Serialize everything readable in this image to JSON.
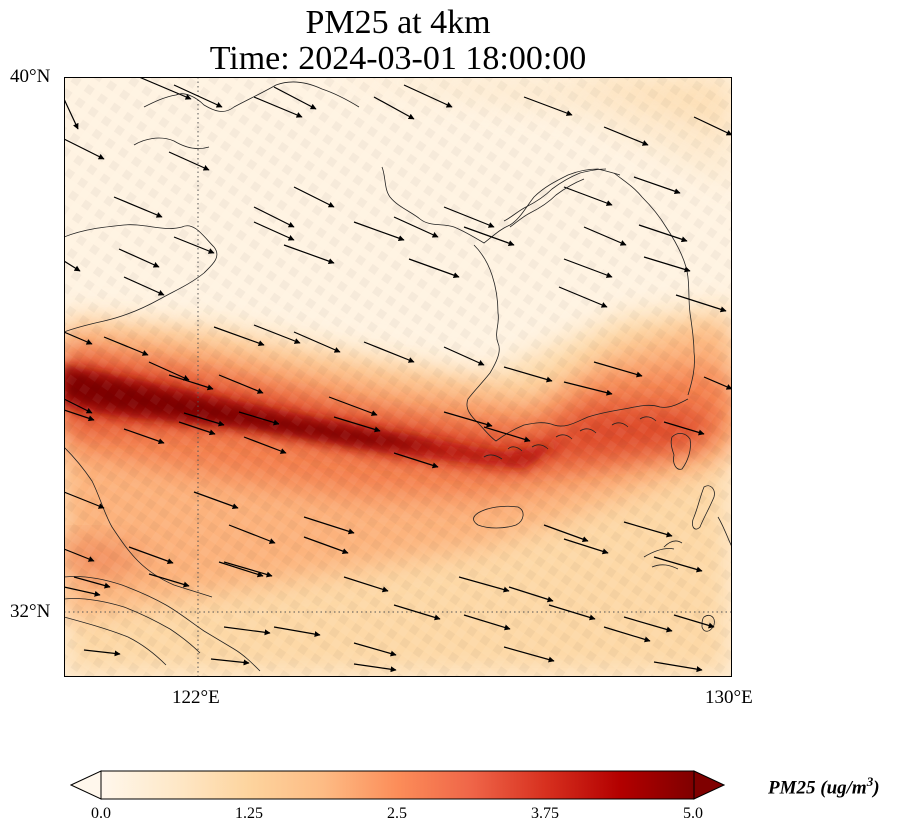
{
  "title": {
    "line1": "PM25 at 4km",
    "line2": "Time: 2024-03-01 18:00:00"
  },
  "map": {
    "lat_labels": [
      "40°N",
      "32°N"
    ],
    "lon_labels": [
      "122°E",
      "130°E"
    ],
    "gridlines": "dotted",
    "plume_color": "#7f0000",
    "land_outline_color": "#000000"
  },
  "colorbar": {
    "ticks": [
      "0.0",
      "1.25",
      "2.5",
      "3.75",
      "5.0"
    ],
    "label_main": "PM25 (ug/m",
    "label_sup": "3",
    "label_end": ")",
    "colormap": [
      "#fff7ec",
      "#fee8c8",
      "#fdd49e",
      "#fdbb84",
      "#fc8d59",
      "#ef6548",
      "#d7301f",
      "#b30000",
      "#7f0000"
    ]
  }
}
